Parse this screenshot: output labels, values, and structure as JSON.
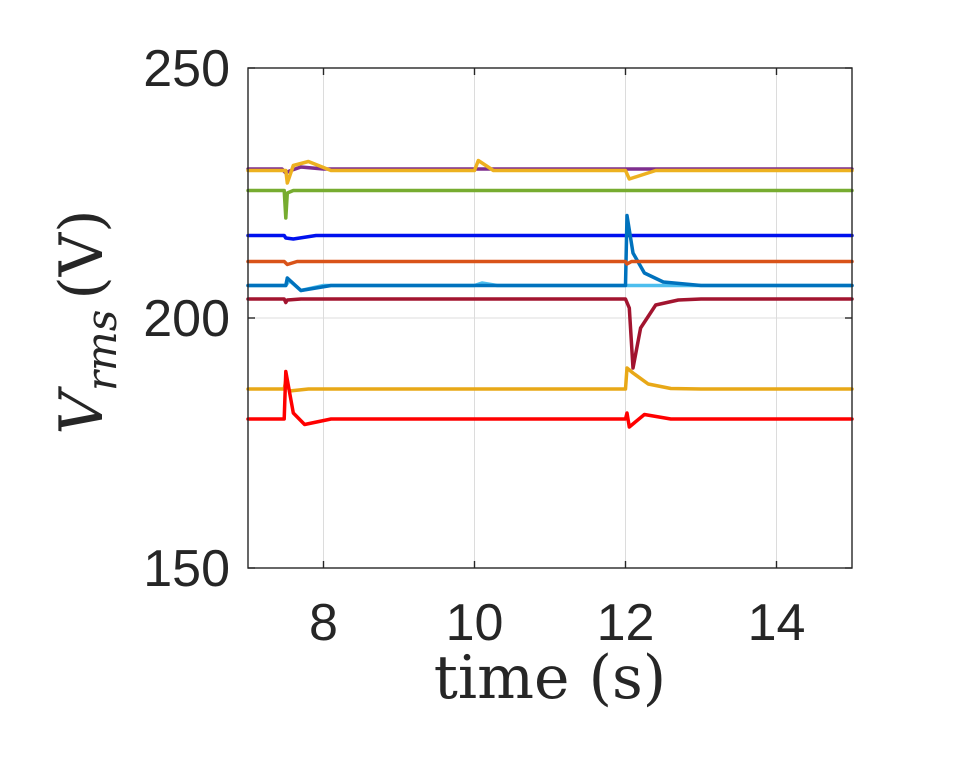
{
  "chart_data": {
    "type": "line",
    "title": "",
    "xlabel": "time (s)",
    "ylabel_main": "V",
    "ylabel_sub": "rms",
    "ylabel_unit": "(V)",
    "xlim": [
      7,
      15
    ],
    "ylim": [
      150,
      250
    ],
    "xticks": [
      8,
      10,
      12,
      14
    ],
    "yticks": [
      150,
      200,
      250
    ],
    "grid": true,
    "series": [
      {
        "color": "#7E2F8E",
        "x": [
          7,
          7.45,
          7.5,
          7.55,
          7.7,
          8,
          12,
          15
        ],
        "y": [
          229.8,
          229.8,
          229,
          229.4,
          230.2,
          229.8,
          229.8,
          229.8
        ]
      },
      {
        "color": "#EDB120",
        "x": [
          7,
          7.5,
          7.52,
          7.6,
          7.8,
          8.1,
          10,
          10.05,
          10.25,
          12,
          12.05,
          12.4,
          15
        ],
        "y": [
          229.5,
          229.5,
          227,
          230.5,
          231.3,
          229.5,
          229.5,
          231.5,
          229.5,
          229.5,
          227.8,
          229.5,
          229.5
        ]
      },
      {
        "color": "#77AC30",
        "x": [
          7,
          7.48,
          7.5,
          7.52,
          7.6,
          15
        ],
        "y": [
          225.5,
          225.5,
          220,
          225,
          225.5,
          225.5
        ]
      },
      {
        "color": "#0011EE",
        "x": [
          7,
          7.48,
          7.5,
          7.6,
          7.9,
          15
        ],
        "y": [
          216.5,
          216.5,
          216,
          215.8,
          216.5,
          216.5
        ]
      },
      {
        "color": "#4DBEEE",
        "x": [
          7,
          7.5,
          7.55,
          7.7,
          8,
          10,
          10.1,
          10.3,
          15
        ],
        "y": [
          206.5,
          206.5,
          207.5,
          205.5,
          206.5,
          206.5,
          207,
          206.5,
          206.5
        ]
      },
      {
        "color": "#0072BD",
        "x": [
          7,
          7.5,
          7.52,
          7.7,
          8.1,
          12,
          12.02,
          12.1,
          12.25,
          12.5,
          13,
          15
        ],
        "y": [
          206.5,
          206.5,
          208,
          205.5,
          206.5,
          206.5,
          220.5,
          213,
          209,
          207.2,
          206.5,
          206.5
        ]
      },
      {
        "color": "#A2142F",
        "x": [
          7,
          7.48,
          7.5,
          7.52,
          7.7,
          12,
          12.05,
          12.1,
          12.2,
          12.4,
          12.7,
          13,
          15
        ],
        "y": [
          203.8,
          203.8,
          203.1,
          203.6,
          203.8,
          203.8,
          202,
          190,
          198,
          202.6,
          203.6,
          203.8,
          203.8
        ]
      },
      {
        "color": "#D95319",
        "x": [
          7,
          7.48,
          7.52,
          7.65,
          12,
          12.02,
          12.08,
          12.2,
          12.5,
          15
        ],
        "y": [
          211.3,
          211.3,
          210.7,
          211.3,
          211.3,
          210.8,
          211.3,
          211.3,
          211.3,
          211.3
        ]
      },
      {
        "color": "#E8A817",
        "x": [
          7,
          7.48,
          7.5,
          7.55,
          7.8,
          12,
          12.02,
          12.1,
          12.3,
          12.6,
          13,
          15
        ],
        "y": [
          185.8,
          185.8,
          187.5,
          185.4,
          185.8,
          185.8,
          190,
          189,
          186.8,
          185.9,
          185.8,
          185.8
        ]
      },
      {
        "color": "#FF0000",
        "x": [
          7,
          7.48,
          7.5,
          7.6,
          7.75,
          8.1,
          8.5,
          12,
          12.02,
          12.05,
          12.25,
          12.6,
          15
        ],
        "y": [
          179.8,
          179.8,
          189.3,
          181,
          178.7,
          179.8,
          179.8,
          179.8,
          181,
          178.2,
          180.7,
          179.8,
          179.8
        ]
      }
    ]
  }
}
